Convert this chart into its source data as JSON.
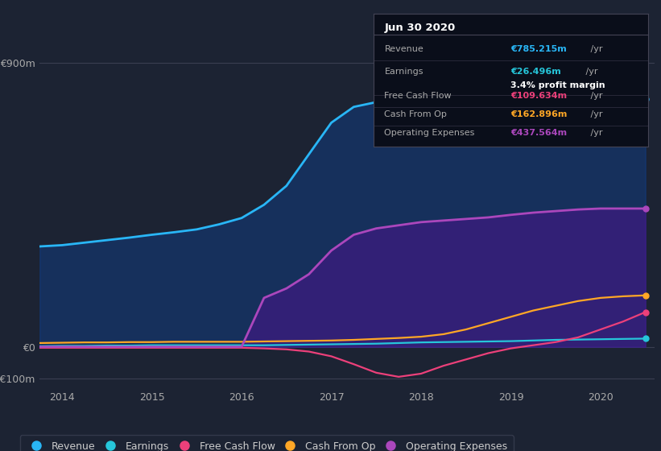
{
  "bg_color": "#1c2333",
  "plot_bg_color": "#1c2333",
  "years": [
    2013.75,
    2014.0,
    2014.25,
    2014.5,
    2014.75,
    2015.0,
    2015.25,
    2015.5,
    2015.75,
    2016.0,
    2016.25,
    2016.5,
    2016.75,
    2017.0,
    2017.25,
    2017.5,
    2017.75,
    2018.0,
    2018.25,
    2018.5,
    2018.75,
    2019.0,
    2019.25,
    2019.5,
    2019.75,
    2020.0,
    2020.25,
    2020.5
  ],
  "revenue": [
    318,
    322,
    330,
    338,
    346,
    355,
    363,
    372,
    388,
    408,
    450,
    510,
    610,
    710,
    760,
    775,
    788,
    792,
    785,
    778,
    765,
    760,
    762,
    765,
    770,
    778,
    783,
    785
  ],
  "earnings": [
    2,
    3,
    3,
    4,
    4,
    5,
    5,
    5,
    5,
    5,
    5,
    6,
    7,
    8,
    9,
    10,
    12,
    14,
    15,
    16,
    17,
    18,
    20,
    22,
    23,
    24,
    25,
    26
  ],
  "free_cf": [
    -3,
    -3,
    -3,
    -3,
    -3,
    -3,
    -3,
    -3,
    -3,
    -3,
    -5,
    -8,
    -15,
    -30,
    -55,
    -82,
    -95,
    -85,
    -60,
    -40,
    -20,
    -5,
    5,
    15,
    30,
    55,
    80,
    110
  ],
  "cash_from_op": [
    12,
    13,
    14,
    14,
    15,
    15,
    16,
    16,
    16,
    16,
    17,
    18,
    19,
    20,
    22,
    25,
    28,
    32,
    40,
    55,
    75,
    95,
    115,
    130,
    145,
    155,
    160,
    163
  ],
  "op_expenses": [
    0,
    0,
    0,
    0,
    0,
    0,
    0,
    0,
    0,
    0,
    155,
    185,
    230,
    305,
    355,
    375,
    385,
    395,
    400,
    405,
    410,
    418,
    425,
    430,
    435,
    438,
    438,
    438
  ],
  "revenue_color": "#29b6f6",
  "earnings_color": "#26c6da",
  "free_cf_color": "#ec407a",
  "cash_from_op_color": "#ffa726",
  "op_expenses_color": "#ab47bc",
  "revenue_fill_alpha": 0.38,
  "op_expenses_fill_alpha": 0.55,
  "revenue_fill_color": "#0d47a1",
  "op_expenses_fill_color": "#4a148c",
  "ylim_min": -130,
  "ylim_max": 970,
  "xticks": [
    2014,
    2015,
    2016,
    2017,
    2018,
    2019,
    2020
  ],
  "info_box": {
    "title": "Jun 30 2020",
    "revenue_label": "Revenue",
    "revenue_value": "€785.215m /yr",
    "earnings_label": "Earnings",
    "earnings_value": "€26.496m /yr",
    "profit_margin": "3.4% profit margin",
    "fcf_label": "Free Cash Flow",
    "fcf_value": "€109.634m /yr",
    "cfo_label": "Cash From Op",
    "cfo_value": "€162.896m /yr",
    "opex_label": "Operating Expenses",
    "opex_value": "€437.564m /yr"
  },
  "legend_items": [
    "Revenue",
    "Earnings",
    "Free Cash Flow",
    "Cash From Op",
    "Operating Expenses"
  ],
  "revenue_color_leg": "#29b6f6",
  "earnings_color_leg": "#26c6da",
  "free_cf_color_leg": "#ec407a",
  "cash_from_op_color_leg": "#ffa726",
  "op_expenses_color_leg": "#ab47bc"
}
